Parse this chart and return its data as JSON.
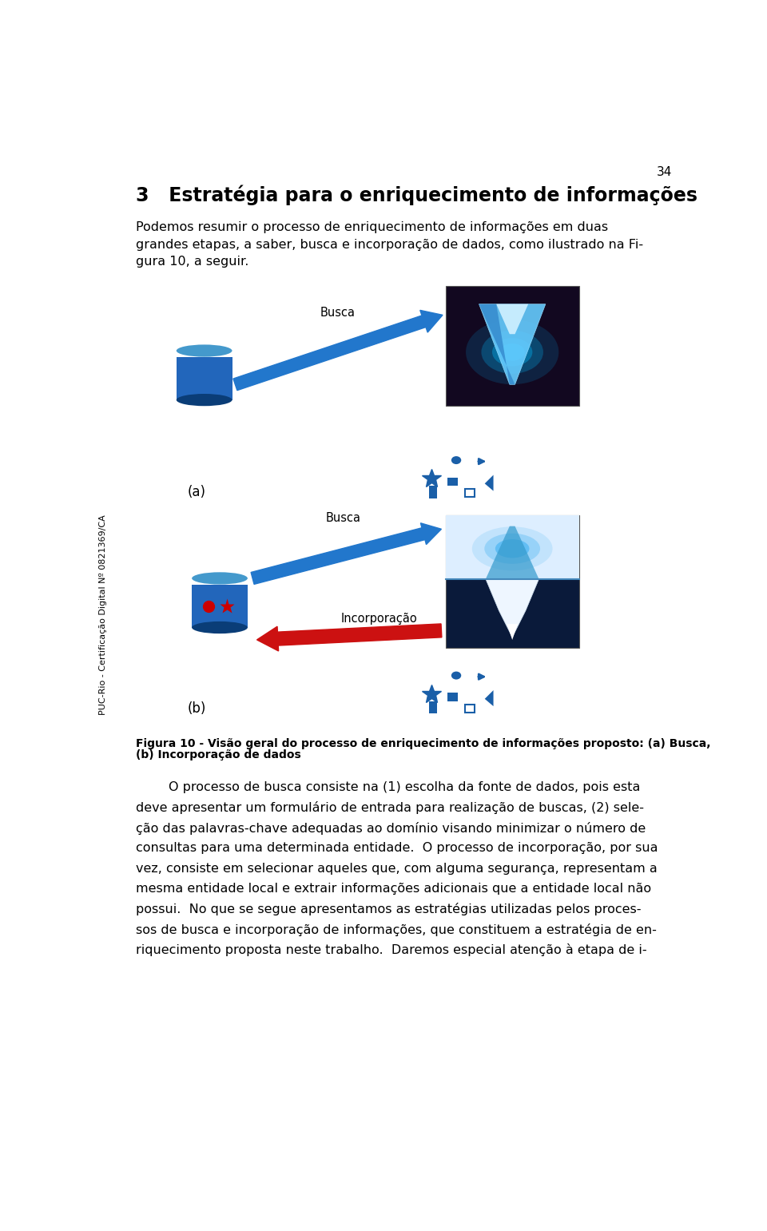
{
  "page_number": "34",
  "chapter_title": "3   Estratégia para o enriquecimento de informações",
  "sidebar_text": "PUC-Rio - Certificação Digital Nº 0821369/CA",
  "intro_lines": [
    "Podemos resumir o processo de enriquecimento de informações em duas",
    "grandes etapas, a saber, busca e incorporação de dados, como ilustrado na Fi-",
    "gura 10, a seguir."
  ],
  "label_a": "(a)",
  "label_b": "(b)",
  "busca_label": "Busca",
  "incorporacao_label": "Incorporação",
  "caption_line1": "Figura 10 - Visão geral do processo de enriquecimento de informações proposto: (a) Busca,",
  "caption_line2": "(b) Incorporação de dados",
  "body_lines": [
    "        O processo de busca consiste na (1) escolha da fonte de dados, pois esta",
    "deve apresentar um formulário de entrada para realização de buscas, (2) sele-",
    "ção das palavras-chave adequadas ao domínio visando minimizar o número de",
    "consultas para uma determinada entidade.  O processo de incorporação, por sua",
    "vez, consiste em selecionar aqueles que, com alguma segurança, representam a",
    "mesma entidade local e extrair informações adicionais que a entidade local não",
    "possui.  No que se segue apresentamos as estratégias utilizadas pelos proces-",
    "sos de busca e incorporação de informações, que constituem a estratégia de en-",
    "riquecimento proposta neste trabalho.  Daremos especial atenção à etapa de i-"
  ],
  "bg_color": "#ffffff",
  "text_color": "#000000",
  "blue_dark": "#1155aa",
  "blue_mid": "#2277cc",
  "blue_light": "#55aaee",
  "blue_cylinder": "#2266bb",
  "arrow_blue": "#2277cc",
  "arrow_red": "#cc1111",
  "shapes_blue": "#1a5fa8"
}
